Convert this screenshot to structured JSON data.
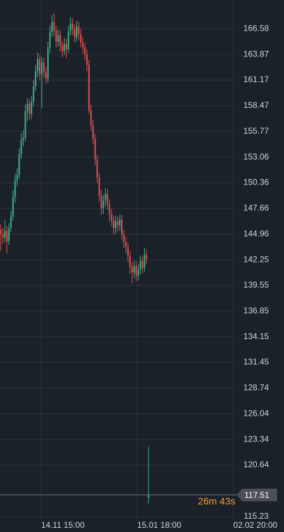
{
  "chart_data": {
    "type": "candlestick",
    "x": [
      0,
      1,
      2,
      3,
      4,
      5,
      6,
      7,
      8,
      9,
      10,
      11,
      12,
      13,
      14,
      15,
      16,
      17,
      18,
      19,
      20,
      21,
      22,
      23,
      24,
      25,
      26,
      27,
      28,
      29,
      30,
      31,
      32,
      33,
      34,
      35,
      36,
      37,
      38,
      39,
      40,
      41,
      42,
      43,
      44,
      45,
      46,
      47,
      48,
      49,
      50,
      51,
      52,
      53,
      54,
      55,
      56,
      57,
      58,
      59,
      60,
      61,
      62,
      63,
      64,
      65,
      66,
      67,
      68,
      69,
      70,
      71,
      72
    ],
    "open": [
      145.4,
      145.0,
      144.6,
      145.3,
      144.2,
      145.6,
      146.8,
      148.9,
      150.6,
      151.2,
      153.4,
      154.8,
      155.1,
      157.9,
      158.7,
      157.6,
      158.9,
      160.5,
      162.1,
      163.4,
      161.8,
      163.0,
      162.0,
      161.3,
      164.6,
      166.2,
      167.3,
      166.4,
      165.2,
      165.9,
      164.8,
      164.2,
      165.0,
      164.4,
      166.3,
      167.1,
      166.5,
      165.7,
      166.8,
      166.0,
      165.1,
      164.6,
      163.9,
      162.8,
      158.0,
      156.4,
      155.0,
      152.8,
      150.9,
      149.0,
      147.7,
      148.5,
      149.2,
      148.1,
      147.0,
      146.4,
      145.6,
      146.3,
      145.9,
      146.5,
      144.9,
      144.1,
      143.6,
      142.7,
      141.5,
      140.9,
      141.6,
      140.6,
      141.2,
      142.1,
      141.4,
      142.8,
      117.2
    ],
    "high": [
      146.0,
      145.6,
      146.4,
      145.8,
      146.1,
      147.4,
      149.6,
      151.3,
      151.9,
      154.0,
      155.6,
      155.9,
      158.6,
      159.3,
      159.2,
      159.5,
      161.2,
      162.8,
      164.1,
      163.9,
      163.6,
      163.5,
      162.6,
      165.2,
      166.9,
      168.0,
      168.2,
      166.9,
      166.5,
      166.4,
      165.3,
      165.6,
      165.5,
      166.9,
      167.8,
      167.7,
      167.0,
      167.4,
      167.3,
      166.6,
      165.7,
      165.1,
      164.4,
      163.3,
      158.6,
      157.0,
      155.5,
      153.3,
      151.4,
      149.6,
      149.1,
      149.8,
      149.7,
      148.6,
      147.6,
      146.9,
      146.9,
      146.8,
      147.0,
      147.0,
      145.4,
      144.7,
      144.1,
      143.2,
      142.0,
      142.2,
      142.1,
      141.8,
      142.7,
      142.6,
      143.5,
      143.3,
      122.6
    ],
    "low": [
      143.2,
      143.9,
      144.1,
      142.9,
      143.8,
      145.2,
      146.4,
      148.3,
      150.0,
      150.8,
      152.9,
      154.2,
      154.7,
      156.8,
      157.0,
      157.1,
      158.4,
      160.0,
      161.5,
      161.2,
      158.2,
      161.4,
      160.8,
      160.9,
      164.0,
      165.7,
      165.8,
      164.6,
      164.7,
      164.2,
      163.6,
      163.8,
      163.5,
      164.0,
      165.9,
      165.9,
      165.1,
      165.2,
      165.4,
      164.6,
      164.0,
      163.3,
      162.1,
      157.6,
      155.9,
      154.4,
      152.2,
      150.3,
      148.4,
      147.0,
      147.1,
      147.9,
      147.5,
      146.3,
      145.8,
      144.9,
      145.0,
      145.2,
      145.3,
      144.3,
      143.5,
      142.9,
      142.0,
      140.8,
      139.8,
      140.3,
      140.0,
      140.1,
      140.7,
      140.8,
      141.0,
      141.8,
      116.6
    ],
    "close": [
      145.0,
      144.6,
      145.3,
      144.2,
      145.6,
      146.8,
      148.9,
      150.6,
      151.2,
      153.4,
      154.8,
      155.1,
      157.9,
      158.7,
      157.6,
      158.9,
      160.5,
      162.1,
      163.4,
      161.8,
      163.0,
      162.0,
      161.3,
      164.6,
      166.2,
      167.3,
      166.4,
      165.2,
      165.9,
      164.8,
      164.2,
      165.0,
      164.4,
      166.3,
      167.1,
      166.5,
      165.7,
      166.8,
      166.0,
      165.1,
      164.6,
      163.9,
      162.8,
      158.0,
      156.4,
      155.0,
      152.8,
      150.9,
      149.0,
      147.7,
      148.5,
      149.2,
      148.1,
      147.0,
      146.4,
      145.6,
      146.3,
      145.9,
      146.5,
      144.9,
      144.1,
      143.6,
      142.7,
      141.5,
      140.9,
      141.6,
      140.6,
      141.2,
      142.1,
      141.4,
      142.8,
      142.3,
      117.51
    ],
    "up_color": "#3bb387",
    "down_color": "#e0504f",
    "xlim": [
      0,
      114.6
    ],
    "xticks": [
      {
        "value": 20,
        "label": "14.11 15:00"
      },
      {
        "value": 66.8,
        "label": "15.01 18:00"
      },
      {
        "value": 113.6,
        "label": "02.02 20:00"
      }
    ],
    "ylim": [
      115.0,
      169.6
    ],
    "yticks": [
      115.23,
      120.64,
      123.34,
      126.04,
      128.74,
      131.45,
      134.15,
      136.85,
      139.55,
      142.25,
      144.96,
      147.66,
      150.36,
      153.06,
      155.77,
      158.47,
      161.17,
      163.87,
      166.58
    ],
    "grid": true,
    "last_price": 117.51,
    "countdown": "26m 43s"
  }
}
